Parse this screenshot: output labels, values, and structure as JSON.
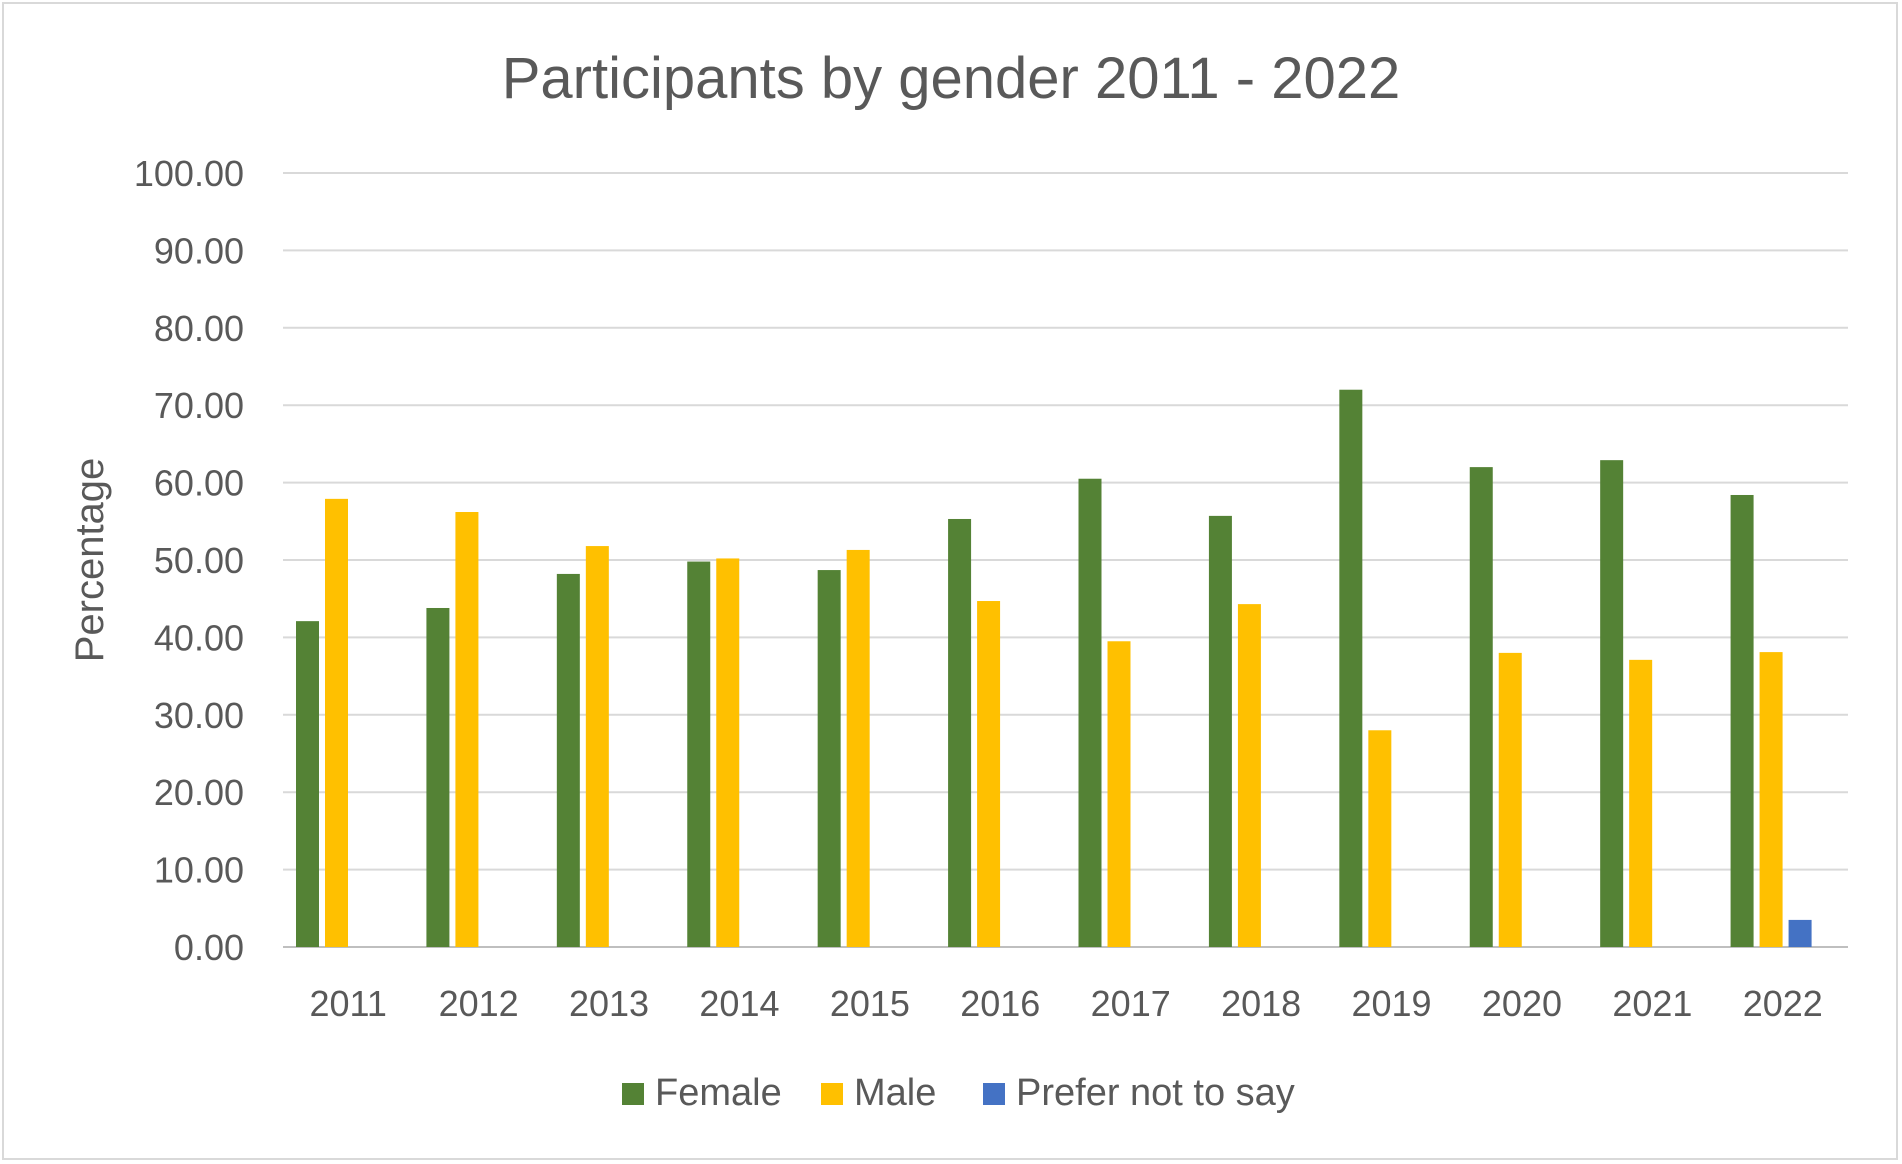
{
  "chart_data": {
    "type": "bar",
    "title": "Participants by gender 2011 - 2022",
    "xlabel": "",
    "ylabel": "Percentage",
    "ylim": [
      0,
      100
    ],
    "yticks": [
      "0.00",
      "10.00",
      "20.00",
      "30.00",
      "40.00",
      "50.00",
      "60.00",
      "70.00",
      "80.00",
      "90.00",
      "100.00"
    ],
    "grid": true,
    "legend_position": "bottom",
    "categories": [
      "2011",
      "2012",
      "2013",
      "2014",
      "2015",
      "2016",
      "2017",
      "2018",
      "2019",
      "2020",
      "2021",
      "2022"
    ],
    "series": [
      {
        "name": "Female",
        "color": "#548235",
        "values": [
          42.1,
          43.8,
          48.2,
          49.8,
          48.7,
          55.3,
          60.5,
          55.7,
          72.0,
          62.0,
          62.9,
          58.4
        ]
      },
      {
        "name": "Male",
        "color": "#FFC000",
        "values": [
          57.9,
          56.2,
          51.8,
          50.2,
          51.3,
          44.7,
          39.5,
          44.3,
          28.0,
          38.0,
          37.1,
          38.1
        ]
      },
      {
        "name": "Prefer not to say",
        "color": "#4472C4",
        "values": [
          null,
          null,
          null,
          null,
          null,
          null,
          null,
          null,
          null,
          null,
          null,
          3.5
        ]
      }
    ]
  }
}
